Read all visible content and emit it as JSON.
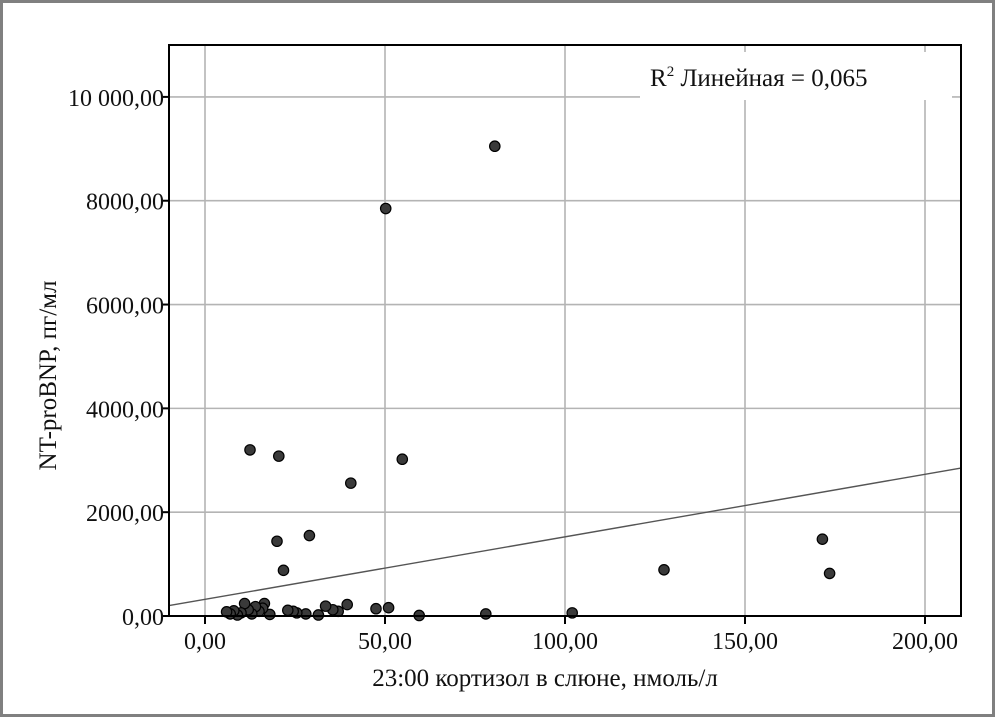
{
  "chart_data": {
    "type": "scatter",
    "xlabel": "23:00 кортизол в слюне, нмоль/л",
    "ylabel": "NT-proBNP, пг/мл",
    "xlim": [
      -10,
      210
    ],
    "ylim": [
      0,
      11000
    ],
    "x_ticks": [
      0,
      50,
      100,
      150,
      200
    ],
    "x_tick_labels": [
      "0,00",
      "50,00",
      "100,00",
      "150,00",
      "200,00"
    ],
    "y_ticks": [
      0,
      2000,
      4000,
      6000,
      8000,
      10000
    ],
    "y_tick_labels": [
      "0,00",
      "2000,00",
      "4000,00",
      "6000,00",
      "8000,00",
      "10 000,00"
    ],
    "grid": true,
    "annotation": {
      "prefix": "R",
      "superscript": "2",
      "text": " Линейная = 0,065",
      "position": "top-right"
    },
    "fit_line": {
      "type": "linear",
      "x": [
        -10,
        210
      ],
      "y": [
        200,
        2850
      ]
    },
    "points": [
      {
        "x": 50.2,
        "y": 7850
      },
      {
        "x": 80.5,
        "y": 9050
      },
      {
        "x": 12.5,
        "y": 3200
      },
      {
        "x": 20.5,
        "y": 3080
      },
      {
        "x": 54.8,
        "y": 3020
      },
      {
        "x": 40.5,
        "y": 2560
      },
      {
        "x": 29.0,
        "y": 1550
      },
      {
        "x": 20.0,
        "y": 1440
      },
      {
        "x": 21.8,
        "y": 880
      },
      {
        "x": 127.5,
        "y": 890
      },
      {
        "x": 171.5,
        "y": 1480
      },
      {
        "x": 173.5,
        "y": 820
      },
      {
        "x": 102.0,
        "y": 60
      },
      {
        "x": 78.0,
        "y": 40
      },
      {
        "x": 59.5,
        "y": 10
      },
      {
        "x": 51.0,
        "y": 160
      },
      {
        "x": 47.5,
        "y": 140
      },
      {
        "x": 39.5,
        "y": 220
      },
      {
        "x": 37.0,
        "y": 90
      },
      {
        "x": 35.5,
        "y": 120
      },
      {
        "x": 33.5,
        "y": 190
      },
      {
        "x": 31.5,
        "y": 20
      },
      {
        "x": 28.0,
        "y": 40
      },
      {
        "x": 25.5,
        "y": 60
      },
      {
        "x": 24.5,
        "y": 90
      },
      {
        "x": 23.0,
        "y": 110
      },
      {
        "x": 18.0,
        "y": 30
      },
      {
        "x": 16.5,
        "y": 240
      },
      {
        "x": 16.0,
        "y": 150
      },
      {
        "x": 15.0,
        "y": 90
      },
      {
        "x": 14.0,
        "y": 180
      },
      {
        "x": 13.0,
        "y": 40
      },
      {
        "x": 12.0,
        "y": 120
      },
      {
        "x": 11.0,
        "y": 240
      },
      {
        "x": 10.0,
        "y": 60
      },
      {
        "x": 9.0,
        "y": 20
      },
      {
        "x": 8.0,
        "y": 100
      },
      {
        "x": 7.0,
        "y": 40
      },
      {
        "x": 6.0,
        "y": 80
      }
    ],
    "colors": {
      "point_fill": "#3a3a3a",
      "point_stroke": "#000000",
      "grid": "#b4b4b4",
      "frame": "#808080",
      "fit_line": "#555555"
    }
  }
}
